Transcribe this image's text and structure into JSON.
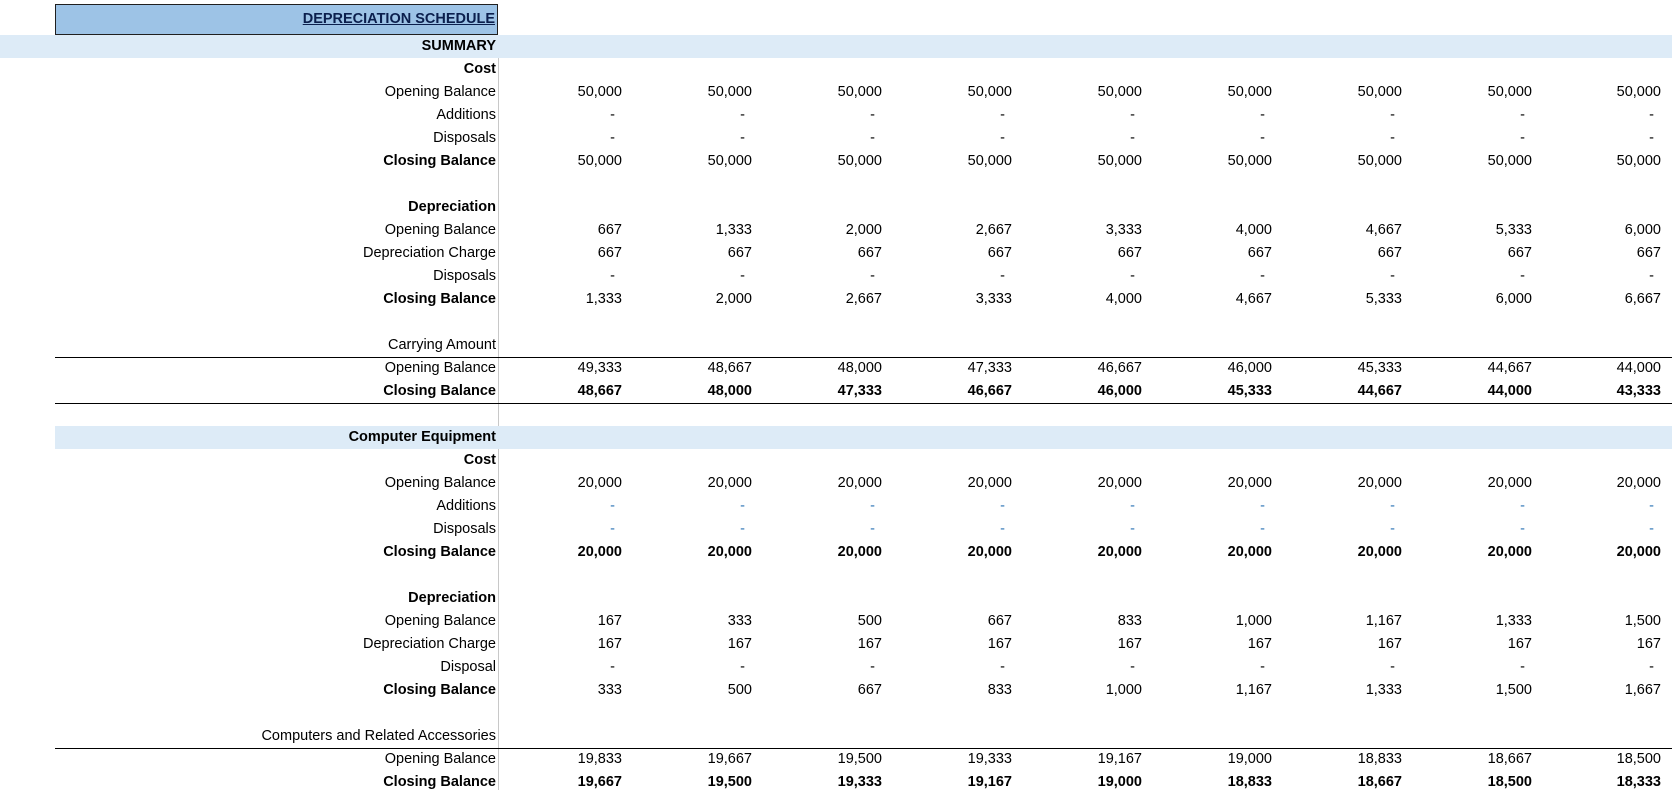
{
  "title": "DEPRECIATION SCHEDULE",
  "rows": [
    {
      "label": "SUMMARY"
    },
    {
      "label": "Cost"
    },
    {
      "label": "Opening Balance",
      "values": [
        "50,000",
        "50,000",
        "50,000",
        "50,000",
        "50,000",
        "50,000",
        "50,000",
        "50,000",
        "50,000"
      ]
    },
    {
      "label": "Additions",
      "values": [
        "-",
        "-",
        "-",
        "-",
        "-",
        "-",
        "-",
        "-",
        "-"
      ]
    },
    {
      "label": "Disposals",
      "values": [
        "-",
        "-",
        "-",
        "-",
        "-",
        "-",
        "-",
        "-",
        "-"
      ]
    },
    {
      "label": "Closing Balance",
      "values": [
        "50,000",
        "50,000",
        "50,000",
        "50,000",
        "50,000",
        "50,000",
        "50,000",
        "50,000",
        "50,000"
      ]
    },
    {
      "label": "Depreciation"
    },
    {
      "label": "Opening Balance",
      "values": [
        "667",
        "1,333",
        "2,000",
        "2,667",
        "3,333",
        "4,000",
        "4,667",
        "5,333",
        "6,000"
      ]
    },
    {
      "label": "Depreciation Charge",
      "values": [
        "667",
        "667",
        "667",
        "667",
        "667",
        "667",
        "667",
        "667",
        "667"
      ]
    },
    {
      "label": "Disposals",
      "values": [
        "-",
        "-",
        "-",
        "-",
        "-",
        "-",
        "-",
        "-",
        "-"
      ]
    },
    {
      "label": "Closing Balance",
      "values": [
        "1,333",
        "2,000",
        "2,667",
        "3,333",
        "4,000",
        "4,667",
        "5,333",
        "6,000",
        "6,667"
      ]
    },
    {
      "label": "Carrying Amount"
    },
    {
      "label": "Opening Balance",
      "values": [
        "49,333",
        "48,667",
        "48,000",
        "47,333",
        "46,667",
        "46,000",
        "45,333",
        "44,667",
        "44,000"
      ]
    },
    {
      "label": "Closing Balance",
      "values": [
        "48,667",
        "48,000",
        "47,333",
        "46,667",
        "46,000",
        "45,333",
        "44,667",
        "44,000",
        "43,333"
      ]
    },
    {
      "label": "Computer Equipment"
    },
    {
      "label": "Cost"
    },
    {
      "label": "Opening Balance",
      "values": [
        "20,000",
        "20,000",
        "20,000",
        "20,000",
        "20,000",
        "20,000",
        "20,000",
        "20,000",
        "20,000"
      ]
    },
    {
      "label": "Additions",
      "values": [
        "-",
        "-",
        "-",
        "-",
        "-",
        "-",
        "-",
        "-",
        "-"
      ]
    },
    {
      "label": "Disposals",
      "values": [
        "-",
        "-",
        "-",
        "-",
        "-",
        "-",
        "-",
        "-",
        "-"
      ]
    },
    {
      "label": "Closing Balance",
      "values": [
        "20,000",
        "20,000",
        "20,000",
        "20,000",
        "20,000",
        "20,000",
        "20,000",
        "20,000",
        "20,000"
      ]
    },
    {
      "label": "Depreciation"
    },
    {
      "label": "Opening Balance",
      "values": [
        "167",
        "333",
        "500",
        "667",
        "833",
        "1,000",
        "1,167",
        "1,333",
        "1,500"
      ]
    },
    {
      "label": "Depreciation Charge",
      "values": [
        "167",
        "167",
        "167",
        "167",
        "167",
        "167",
        "167",
        "167",
        "167"
      ]
    },
    {
      "label": "Disposal",
      "values": [
        "-",
        "-",
        "-",
        "-",
        "-",
        "-",
        "-",
        "-",
        "-"
      ]
    },
    {
      "label": "Closing Balance",
      "values": [
        "333",
        "500",
        "667",
        "833",
        "1,000",
        "1,167",
        "1,333",
        "1,500",
        "1,667"
      ]
    },
    {
      "label": "Computers and Related Accessories"
    },
    {
      "label": "Opening Balance",
      "values": [
        "19,833",
        "19,667",
        "19,500",
        "19,333",
        "19,167",
        "19,000",
        "18,833",
        "18,667",
        "18,500"
      ]
    },
    {
      "label": "Closing Balance",
      "values": [
        "19,667",
        "19,500",
        "19,333",
        "19,167",
        "19,000",
        "18,833",
        "18,667",
        "18,500",
        "18,333"
      ]
    }
  ]
}
